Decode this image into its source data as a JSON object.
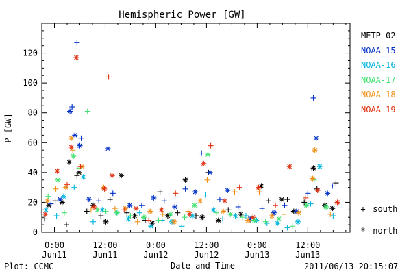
{
  "footer": {
    "plot_credit": "Plot: CCMC",
    "timestamp": "2011/06/13 20:15:07"
  },
  "symbol_legend": [
    {
      "symbol": "+",
      "label": "south"
    },
    {
      "symbol": "*",
      "label": "north"
    }
  ],
  "chart_data": {
    "type": "scatter",
    "title": "Hemispheric Power [GW]",
    "xlabel": "Date and Time",
    "ylabel": "P [GW]",
    "ylim": [
      0,
      140
    ],
    "yticks": [
      0,
      20,
      40,
      60,
      80,
      100,
      120
    ],
    "xlim": [
      "2011-06-10 21:00",
      "2011-06-13 22:00"
    ],
    "xticks": [
      {
        "at": "2011-06-11 00:00",
        "time": "0:00",
        "date": "Jun11"
      },
      {
        "at": "2011-06-11 12:00",
        "time": "12:00",
        "date": "Jun11"
      },
      {
        "at": "2011-06-12 00:00",
        "time": "0:00",
        "date": "Jun12"
      },
      {
        "at": "2011-06-12 12:00",
        "time": "12:00",
        "date": "Jun12"
      },
      {
        "at": "2011-06-13 00:00",
        "time": "0:00",
        "date": "Jun13"
      },
      {
        "at": "2011-06-13 12:00",
        "time": "12:00",
        "date": "Jun13"
      }
    ],
    "grid": false,
    "legend_position": "right",
    "series": [
      {
        "name": "METP-02",
        "color": "#000000",
        "points": [
          [
            "2011-06-10 21:40",
            9,
            "south"
          ],
          [
            "2011-06-10 22:40",
            18,
            "north"
          ],
          [
            "2011-06-11 00:10",
            21,
            "south"
          ],
          [
            "2011-06-11 01:50",
            20,
            "north"
          ],
          [
            "2011-06-11 02:50",
            5,
            "south"
          ],
          [
            "2011-06-11 03:30",
            47,
            "north"
          ],
          [
            "2011-06-11 05:20",
            38,
            "south"
          ],
          [
            "2011-06-11 05:50",
            40,
            "north"
          ],
          [
            "2011-06-11 07:40",
            14,
            "south"
          ],
          [
            "2011-06-11 09:10",
            18,
            "north"
          ],
          [
            "2011-06-11 11:00",
            11,
            "south"
          ],
          [
            "2011-06-11 12:10",
            7,
            "north"
          ],
          [
            "2011-06-11 13:10",
            22,
            "south"
          ],
          [
            "2011-06-11 15:50",
            38,
            "north"
          ],
          [
            "2011-06-11 17:10",
            13,
            "south"
          ],
          [
            "2011-06-11 19:00",
            11,
            "north"
          ],
          [
            "2011-06-11 21:30",
            8,
            "south"
          ],
          [
            "2011-06-11 23:10",
            6,
            "north"
          ],
          [
            "2011-06-12 01:00",
            27,
            "south"
          ],
          [
            "2011-06-12 02:50",
            11,
            "north"
          ],
          [
            "2011-06-12 05:10",
            13,
            "south"
          ],
          [
            "2011-06-12 07:00",
            35,
            "north"
          ],
          [
            "2011-06-12 09:30",
            11,
            "south"
          ],
          [
            "2011-06-12 11:00",
            10,
            "north"
          ],
          [
            "2011-06-12 12:30",
            40,
            "south"
          ],
          [
            "2011-06-12 14:50",
            8,
            "north"
          ],
          [
            "2011-06-12 17:10",
            15,
            "south"
          ],
          [
            "2011-06-12 20:10",
            12,
            "north"
          ],
          [
            "2011-06-12 22:30",
            8,
            "south"
          ],
          [
            "2011-06-13 01:00",
            31,
            "north"
          ],
          [
            "2011-06-13 02:40",
            21,
            "south"
          ],
          [
            "2011-06-13 05:50",
            22,
            "north"
          ],
          [
            "2011-06-13 07:10",
            22,
            "south"
          ],
          [
            "2011-06-13 08:40",
            14,
            "north"
          ],
          [
            "2011-06-13 11:10",
            20,
            "south"
          ],
          [
            "2011-06-13 13:20",
            43,
            "north"
          ],
          [
            "2011-06-13 14:10",
            29,
            "south"
          ],
          [
            "2011-06-13 16:00",
            18,
            "north"
          ],
          [
            "2011-06-13 17:50",
            16,
            "north"
          ],
          [
            "2011-06-13 18:40",
            33,
            "south"
          ]
        ]
      },
      {
        "name": "NOAA-15",
        "color": "#0030c8",
        "points": [
          [
            "2011-06-10 23:10",
            19,
            "south"
          ],
          [
            "2011-06-11 01:20",
            22,
            "north"
          ],
          [
            "2011-06-11 03:40",
            81,
            "north"
          ],
          [
            "2011-06-11 04:10",
            84,
            "south"
          ],
          [
            "2011-06-11 04:50",
            65,
            "north"
          ],
          [
            "2011-06-11 05:20",
            127,
            "south"
          ],
          [
            "2011-06-11 06:00",
            58,
            "north"
          ],
          [
            "2011-06-11 06:20",
            63,
            "south"
          ],
          [
            "2011-06-11 08:10",
            22,
            "north"
          ],
          [
            "2011-06-11 10:30",
            21,
            "south"
          ],
          [
            "2011-06-11 12:40",
            56,
            "north"
          ],
          [
            "2011-06-11 13:50",
            26,
            "south"
          ],
          [
            "2011-06-11 17:50",
            18,
            "north"
          ],
          [
            "2011-06-11 20:40",
            18,
            "south"
          ],
          [
            "2011-06-11 23:30",
            23,
            "north"
          ],
          [
            "2011-06-12 02:00",
            21,
            "south"
          ],
          [
            "2011-06-12 04:30",
            17,
            "north"
          ],
          [
            "2011-06-12 07:00",
            29,
            "south"
          ],
          [
            "2011-06-12 09:20",
            27,
            "north"
          ],
          [
            "2011-06-12 10:50",
            53,
            "south"
          ],
          [
            "2011-06-12 12:50",
            40,
            "north"
          ],
          [
            "2011-06-12 15:10",
            22,
            "south"
          ],
          [
            "2011-06-12 17:00",
            28,
            "north"
          ],
          [
            "2011-06-12 19:30",
            17,
            "south"
          ],
          [
            "2011-06-12 22:20",
            9,
            "north"
          ],
          [
            "2011-06-13 01:10",
            16,
            "south"
          ],
          [
            "2011-06-13 04:00",
            13,
            "north"
          ],
          [
            "2011-06-13 06:30",
            18,
            "south"
          ],
          [
            "2011-06-13 09:20",
            14,
            "north"
          ],
          [
            "2011-06-13 12:00",
            26,
            "south"
          ],
          [
            "2011-06-13 13:20",
            90,
            "south"
          ],
          [
            "2011-06-13 14:00",
            63,
            "north"
          ],
          [
            "2011-06-13 16:40",
            26,
            "north"
          ],
          [
            "2011-06-13 17:50",
            31,
            "south"
          ]
        ]
      },
      {
        "name": "NOAA-16",
        "color": "#00b4dc",
        "points": [
          [
            "2011-06-10 22:00",
            15,
            "north"
          ],
          [
            "2011-06-11 00:30",
            11,
            "south"
          ],
          [
            "2011-06-11 02:10",
            24,
            "north"
          ],
          [
            "2011-06-11 04:40",
            30,
            "south"
          ],
          [
            "2011-06-11 06:50",
            37,
            "north"
          ],
          [
            "2011-06-11 09:10",
            7,
            "south"
          ],
          [
            "2011-06-11 11:20",
            15,
            "north"
          ],
          [
            "2011-06-11 14:40",
            13,
            "south"
          ],
          [
            "2011-06-11 17:30",
            9,
            "north"
          ],
          [
            "2011-06-11 20:10",
            13,
            "south"
          ],
          [
            "2011-06-11 22:50",
            4,
            "north"
          ],
          [
            "2011-06-12 01:30",
            8,
            "south"
          ],
          [
            "2011-06-12 03:50",
            7,
            "north"
          ],
          [
            "2011-06-12 06:10",
            4,
            "south"
          ],
          [
            "2011-06-12 08:40",
            11,
            "north"
          ],
          [
            "2011-06-12 11:50",
            25,
            "south"
          ],
          [
            "2011-06-12 13:40",
            15,
            "north"
          ],
          [
            "2011-06-12 15:50",
            9,
            "south"
          ],
          [
            "2011-06-12 18:50",
            11,
            "north"
          ],
          [
            "2011-06-12 21:20",
            11,
            "south"
          ],
          [
            "2011-06-12 23:50",
            8,
            "north"
          ],
          [
            "2011-06-13 02:20",
            6,
            "south"
          ],
          [
            "2011-06-13 04:50",
            6,
            "north"
          ],
          [
            "2011-06-13 07:10",
            3,
            "south"
          ],
          [
            "2011-06-13 09:40",
            7,
            "north"
          ],
          [
            "2011-06-13 12:40",
            19,
            "south"
          ],
          [
            "2011-06-13 14:50",
            44,
            "north"
          ],
          [
            "2011-06-13 18:00",
            11,
            "south"
          ]
        ]
      },
      {
        "name": "NOAA-17",
        "color": "#40e070",
        "points": [
          [
            "2011-06-10 22:30",
            24,
            "south"
          ],
          [
            "2011-06-11 00:50",
            35,
            "north"
          ],
          [
            "2011-06-11 02:20",
            13,
            "south"
          ],
          [
            "2011-06-11 04:30",
            51,
            "north"
          ],
          [
            "2011-06-11 05:50",
            43,
            "south"
          ],
          [
            "2011-06-11 07:50",
            81,
            "south"
          ],
          [
            "2011-06-11 10:10",
            15,
            "north"
          ],
          [
            "2011-06-11 12:10",
            14,
            "south"
          ],
          [
            "2011-06-11 14:50",
            13,
            "north"
          ],
          [
            "2011-06-11 18:00",
            11,
            "south"
          ],
          [
            "2011-06-11 21:10",
            10,
            "north"
          ],
          [
            "2011-06-12 00:40",
            8,
            "south"
          ],
          [
            "2011-06-12 03:30",
            12,
            "north"
          ],
          [
            "2011-06-12 06:50",
            10,
            "south"
          ],
          [
            "2011-06-12 09:10",
            18,
            "north"
          ],
          [
            "2011-06-12 12:20",
            52,
            "north"
          ],
          [
            "2011-06-12 14:20",
            13,
            "south"
          ],
          [
            "2011-06-12 17:40",
            12,
            "north"
          ],
          [
            "2011-06-12 20:30",
            10,
            "south"
          ],
          [
            "2011-06-12 23:20",
            8,
            "north"
          ],
          [
            "2011-06-13 02:00",
            7,
            "south"
          ],
          [
            "2011-06-13 05:10",
            9,
            "north"
          ],
          [
            "2011-06-13 08:20",
            4,
            "south"
          ],
          [
            "2011-06-13 11:40",
            18,
            "north"
          ],
          [
            "2011-06-13 13:30",
            35,
            "south"
          ],
          [
            "2011-06-13 16:20",
            17,
            "north"
          ]
        ]
      },
      {
        "name": "NOAA-18",
        "color": "#f09018",
        "points": [
          [
            "2011-06-10 22:20",
            21,
            "north"
          ],
          [
            "2011-06-11 00:20",
            29,
            "south"
          ],
          [
            "2011-06-11 02:40",
            30,
            "north"
          ],
          [
            "2011-06-11 04:00",
            63,
            "north"
          ],
          [
            "2011-06-11 04:20",
            55,
            "south"
          ],
          [
            "2011-06-11 06:30",
            44,
            "north"
          ],
          [
            "2011-06-11 08:40",
            15,
            "south"
          ],
          [
            "2011-06-11 11:40",
            30,
            "north"
          ],
          [
            "2011-06-11 14:20",
            16,
            "south"
          ],
          [
            "2011-06-11 16:50",
            16,
            "north"
          ],
          [
            "2011-06-11 19:40",
            7,
            "south"
          ],
          [
            "2011-06-11 22:40",
            14,
            "north"
          ],
          [
            "2011-06-12 01:40",
            12,
            "south"
          ],
          [
            "2011-06-12 04:20",
            7,
            "north"
          ],
          [
            "2011-06-12 07:40",
            14,
            "south"
          ],
          [
            "2011-06-12 10:30",
            21,
            "north"
          ],
          [
            "2011-06-12 12:10",
            35,
            "south"
          ],
          [
            "2011-06-12 16:00",
            14,
            "north"
          ],
          [
            "2011-06-12 18:40",
            27,
            "south"
          ],
          [
            "2011-06-12 21:50",
            8,
            "north"
          ],
          [
            "2011-06-13 00:30",
            27,
            "south"
          ],
          [
            "2011-06-13 03:30",
            11,
            "north"
          ],
          [
            "2011-06-13 06:20",
            12,
            "south"
          ],
          [
            "2011-06-13 09:50",
            13,
            "north"
          ],
          [
            "2011-06-13 13:10",
            36,
            "north"
          ],
          [
            "2011-06-13 13:40",
            55,
            "north"
          ],
          [
            "2011-06-13 17:20",
            12,
            "south"
          ]
        ]
      },
      {
        "name": "NOAA-19",
        "color": "#e03010",
        "points": [
          [
            "2011-06-10 21:50",
            12,
            "north"
          ],
          [
            "2011-06-11 00:40",
            41,
            "north"
          ],
          [
            "2011-06-11 03:00",
            32,
            "south"
          ],
          [
            "2011-06-11 04:00",
            57,
            "north"
          ],
          [
            "2011-06-11 05:10",
            117,
            "north"
          ],
          [
            "2011-06-11 06:10",
            44,
            "south"
          ],
          [
            "2011-06-11 09:20",
            17,
            "north"
          ],
          [
            "2011-06-11 11:50",
            29,
            "north"
          ],
          [
            "2011-06-11 12:50",
            104,
            "south"
          ],
          [
            "2011-06-11 13:40",
            38,
            "north"
          ],
          [
            "2011-06-11 16:30",
            15,
            "south"
          ],
          [
            "2011-06-11 19:20",
            16,
            "north"
          ],
          [
            "2011-06-11 22:20",
            8,
            "south"
          ],
          [
            "2011-06-12 01:20",
            15,
            "north"
          ],
          [
            "2011-06-12 04:40",
            26,
            "south"
          ],
          [
            "2011-06-12 08:00",
            12,
            "north"
          ],
          [
            "2011-06-12 11:20",
            46,
            "north"
          ],
          [
            "2011-06-12 13:00",
            58,
            "south"
          ],
          [
            "2011-06-12 16:20",
            21,
            "north"
          ],
          [
            "2011-06-12 19:50",
            30,
            "south"
          ],
          [
            "2011-06-12 23:00",
            10,
            "north"
          ],
          [
            "2011-06-13 00:20",
            30,
            "north"
          ],
          [
            "2011-06-13 04:20",
            18,
            "south"
          ],
          [
            "2011-06-13 07:40",
            44,
            "north"
          ],
          [
            "2011-06-13 11:30",
            23,
            "south"
          ],
          [
            "2011-06-13 14:20",
            28,
            "north"
          ],
          [
            "2011-06-13 19:00",
            20,
            "north"
          ]
        ]
      }
    ]
  }
}
